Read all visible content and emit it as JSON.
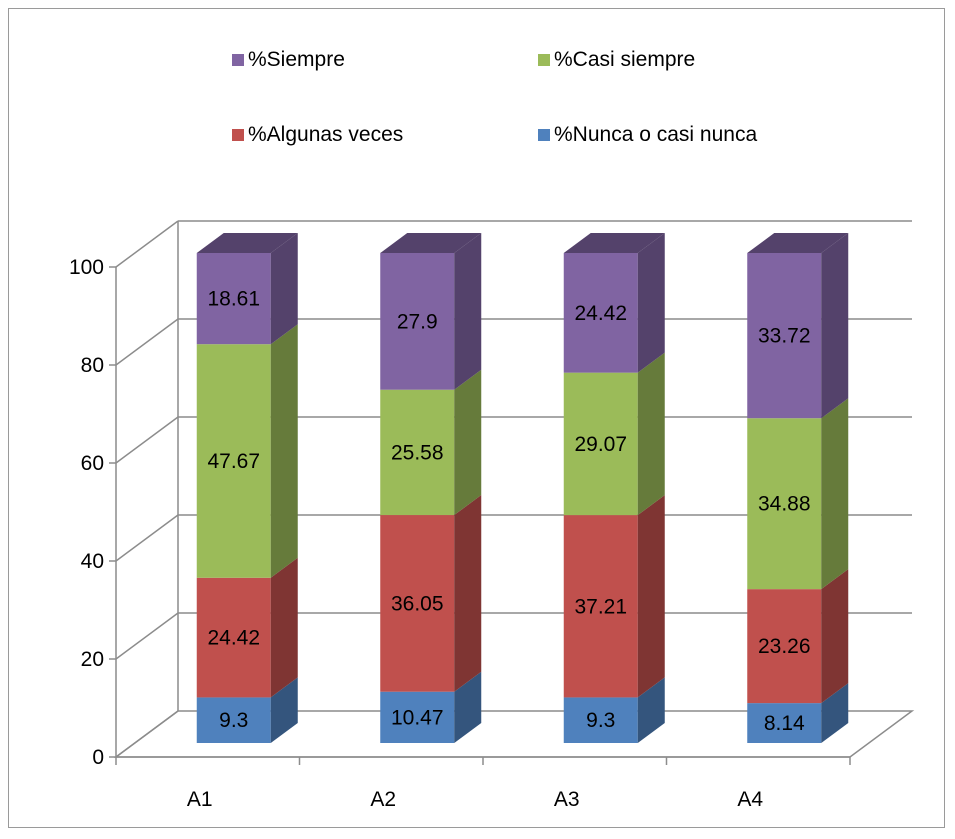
{
  "chart_data": {
    "type": "bar",
    "stacked": true,
    "three_d": true,
    "categories": [
      "A1",
      "A2",
      "A3",
      "A4"
    ],
    "ylim": [
      0,
      100
    ],
    "yticks": [
      0,
      20,
      40,
      60,
      80,
      100
    ],
    "grid": true,
    "legend_position": "top",
    "series": [
      {
        "name": "%Nunca o casi nunca",
        "color": "#4f81bd",
        "values": [
          9.3,
          10.47,
          9.3,
          8.14
        ]
      },
      {
        "name": "%Algunas veces",
        "color": "#c0504d",
        "values": [
          24.42,
          36.05,
          37.21,
          23.26
        ]
      },
      {
        "name": "%Casi siempre",
        "color": "#9bbb59",
        "values": [
          47.67,
          25.58,
          29.07,
          34.88
        ]
      },
      {
        "name": "%Siempre",
        "color": "#8064a2",
        "values": [
          18.61,
          27.9,
          24.42,
          33.72
        ]
      }
    ],
    "legend_order": [
      3,
      2,
      1,
      0
    ]
  }
}
